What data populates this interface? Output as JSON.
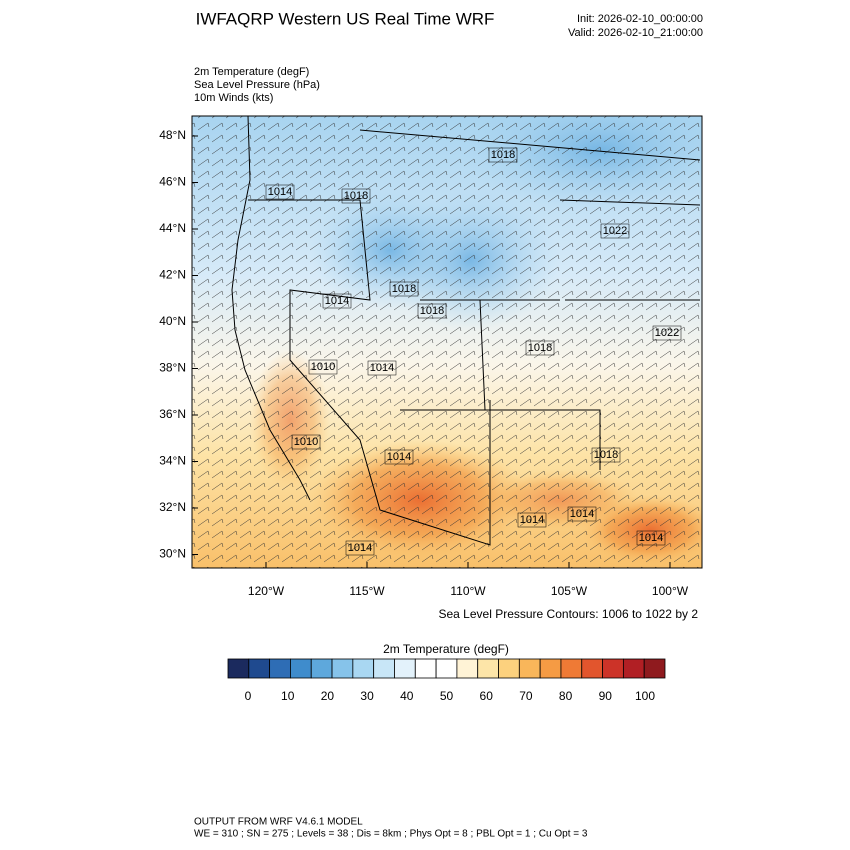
{
  "header": {
    "title": "IWFAQRP Western US Real Time WRF",
    "init": "Init: 2026-02-10_00:00:00",
    "valid": "Valid: 2026-02-10_21:00:00"
  },
  "fields": [
    "2m Temperature   (degF)",
    "Sea Level Pressure   (hPa)",
    "10m Winds   (kts)"
  ],
  "map": {
    "lat_labels": [
      "48°N",
      "46°N",
      "44°N",
      "42°N",
      "40°N",
      "38°N",
      "36°N",
      "34°N",
      "32°N",
      "30°N"
    ],
    "lon_labels": [
      "120°W",
      "115°W",
      "110°W",
      "105°W",
      "100°W"
    ],
    "contour_labels": [
      "1018",
      "1014",
      "1018",
      "1022",
      "1014",
      "1018",
      "1018",
      "1022",
      "1018",
      "1010",
      "1014",
      "1010",
      "1014",
      "1018",
      "1014",
      "1014",
      "1014",
      "1014"
    ],
    "contour_note": "Sea Level Pressure Contours: 1006 to 1022 by 2"
  },
  "colorbar": {
    "title": "2m Temperature  (degF)",
    "ticks": [
      0,
      10,
      20,
      30,
      40,
      50,
      60,
      70,
      80,
      90,
      100
    ],
    "colors": [
      "#1b2a5e",
      "#1f4a8f",
      "#2e6db5",
      "#3f8ccc",
      "#5ea8dc",
      "#86c3ea",
      "#a9d7f2",
      "#c8e6f7",
      "#e3f2fb",
      "#ffffff",
      "#ffffff",
      "#fff3d6",
      "#fde5a8",
      "#fcd17e",
      "#f9b65a",
      "#f59b44",
      "#ef7a35",
      "#e2552d",
      "#cc3328",
      "#b11f24",
      "#8f1a1e"
    ]
  },
  "footer": {
    "line1": "OUTPUT FROM WRF V4.6.1 MODEL",
    "line2": "WE = 310 ; SN = 275 ; Levels = 38 ; Dis = 8km ; Phys Opt = 8 ; PBL Opt = 1 ; Cu Opt = 3"
  }
}
